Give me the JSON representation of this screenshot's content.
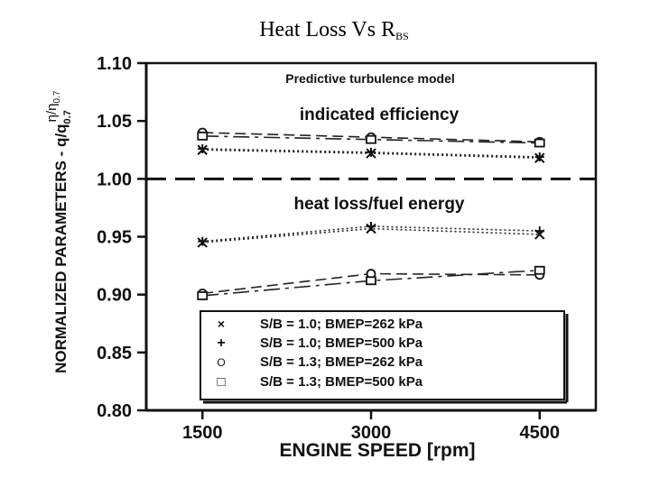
{
  "slide": {
    "title_main": "Heat Loss Vs R",
    "title_sub": "BS"
  },
  "chart_data": {
    "type": "line",
    "title": "Predictive turbulence model",
    "xlabel": "ENGINE SPEED [rpm]",
    "ylabel": "NORMALIZED PARAMETERS - q/q",
    "ylabel_sub": "0.7",
    "ylabel2": "η/η",
    "ylabel2_sub": "0.7",
    "x_ticks": [
      1500,
      3000,
      4500
    ],
    "x_tick_labels": [
      "1500",
      "3000",
      "4500"
    ],
    "y_ticks": [
      0.8,
      0.85,
      0.9,
      0.95,
      1.0,
      1.05,
      1.1
    ],
    "y_tick_labels": [
      "0.80",
      "0.85",
      "0.90",
      "0.95",
      "1.00",
      "1.05",
      "1.10"
    ],
    "xlim": [
      1000,
      5000
    ],
    "ylim": [
      0.8,
      1.1
    ],
    "reference_line": 1.0,
    "annotations": [
      "indicated efficiency",
      "heat loss/fuel energy"
    ],
    "legend_position": "bottom-right",
    "legend": [
      {
        "marker": "×",
        "text": "S/B = 1.0; BMEP=262 kPa"
      },
      {
        "marker": "+",
        "text": "S/B = 1.0; BMEP=500 kPa"
      },
      {
        "marker": "O",
        "text": "S/B = 1.3; BMEP=262 kPa"
      },
      {
        "marker": "□",
        "text": "S/B = 1.3; BMEP=500 kPa"
      }
    ],
    "series": [
      {
        "name": "efficiency S/B=1.0 262kPa",
        "marker": "x",
        "dash": "2,3",
        "x": [
          1500,
          3000,
          4500
        ],
        "y": [
          1.025,
          1.022,
          1.018
        ]
      },
      {
        "name": "efficiency S/B=1.0 500kPa",
        "marker": "plus",
        "dash": "2,3",
        "x": [
          1500,
          3000,
          4500
        ],
        "y": [
          1.026,
          1.023,
          1.019
        ]
      },
      {
        "name": "efficiency S/B=1.3 262kPa",
        "marker": "circle",
        "dash": "12,6",
        "x": [
          1500,
          3000,
          4500
        ],
        "y": [
          1.04,
          1.036,
          1.032
        ]
      },
      {
        "name": "efficiency S/B=1.3 500kPa",
        "marker": "square",
        "dash": "18,6,4,6",
        "x": [
          1500,
          3000,
          4500
        ],
        "y": [
          1.037,
          1.034,
          1.031
        ]
      },
      {
        "name": "heat loss S/B=1.0 262kPa",
        "marker": "x",
        "dash": "2,3",
        "x": [
          1500,
          3000,
          4500
        ],
        "y": [
          0.945,
          0.957,
          0.952
        ]
      },
      {
        "name": "heat loss S/B=1.0 500kPa",
        "marker": "plus",
        "dash": "2,3",
        "x": [
          1500,
          3000,
          4500
        ],
        "y": [
          0.946,
          0.959,
          0.955
        ]
      },
      {
        "name": "heat loss S/B=1.3 262kPa",
        "marker": "circle",
        "dash": "12,6",
        "x": [
          1500,
          3000,
          4500
        ],
        "y": [
          0.901,
          0.918,
          0.917
        ]
      },
      {
        "name": "heat loss S/B=1.3 500kPa",
        "marker": "square",
        "dash": "18,6,4,6",
        "x": [
          1500,
          3000,
          4500
        ],
        "y": [
          0.899,
          0.912,
          0.921
        ]
      }
    ]
  }
}
